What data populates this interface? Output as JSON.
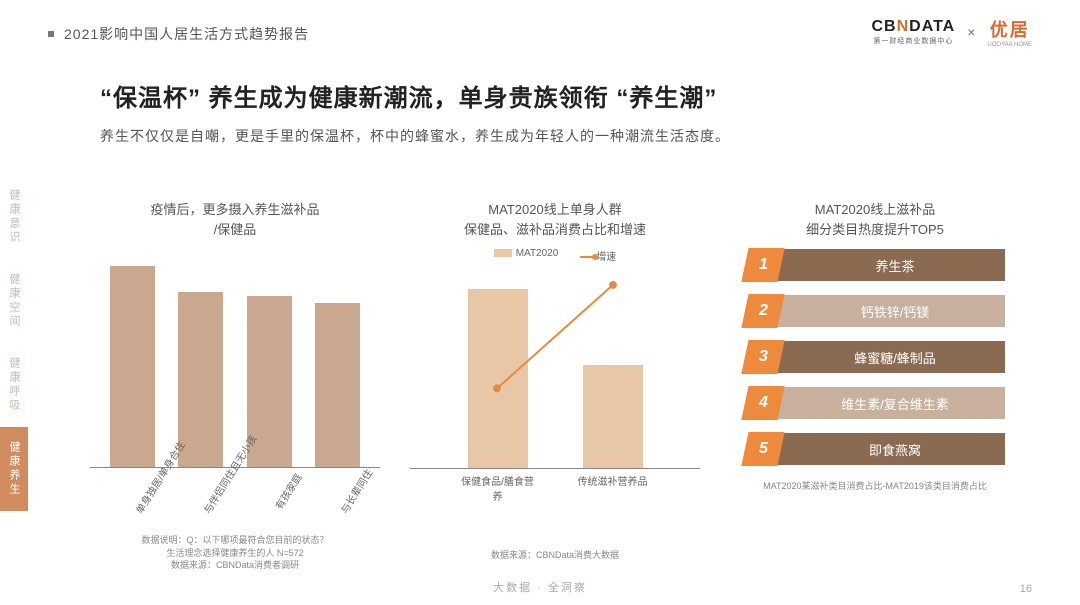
{
  "header": {
    "title": "2021影响中国人居生活方式趋势报告",
    "logo1_main_a": "CB",
    "logo1_main_acc": "N",
    "logo1_main_b": "DATA",
    "logo1_sub": "第一财经商业数据中心",
    "logo_x": "×",
    "logo2_main": "优居",
    "logo2_sub": "UOOYAA HOME"
  },
  "sidebar": {
    "items": [
      "健康意识",
      "健康空间",
      "健康呼吸",
      "健康养生"
    ],
    "active_index": 3
  },
  "main": {
    "title": "“保温杯” 养生成为健康新潮流，单身贵族领衔 “养生潮”",
    "subtitle": "养生不仅仅是自嘲，更是手里的保温杯，杯中的蜂蜜水，养生成为年轻人的一种潮流生活态度。"
  },
  "panel1": {
    "title_l1": "疫情后，更多摄入养生滋补品",
    "title_l2": "/保健品",
    "type": "bar",
    "categories": [
      "单身独居/单身合住",
      "与伴侣同住且无小孩",
      "有孩家庭",
      "与长辈同住"
    ],
    "values_pct": [
      92,
      80,
      78,
      75
    ],
    "bar_color": "#c9a88f",
    "axis_color": "#888888",
    "footnote_l1": "数据说明：Q：以下哪项最符合您目前的状态？",
    "footnote_l2": "生活理念选择健康养生的人 N=572",
    "footnote_l3": "数据来源：CBNData消费者调研"
  },
  "panel2": {
    "title_l1": "MAT2020线上单身人群",
    "title_l2": "保健品、滋补品消费占比和增速",
    "type": "bar+line",
    "legend_bar": "MAT2020",
    "legend_line": "增速",
    "categories": [
      "保健食品/膳食营养",
      "传统滋补营养品"
    ],
    "bar_values_pct": [
      90,
      52
    ],
    "line_values_pct": [
      40,
      92
    ],
    "bar_color": "#e8c7a6",
    "line_color": "#e88a3c",
    "axis_color": "#888888",
    "footnote": "数据来源：CBNData消费大数据"
  },
  "panel3": {
    "title_l1": "MAT2020线上滋补品",
    "title_l2": "细分类目热度提升TOP5",
    "type": "ranked-list",
    "rank_bg": "#ee8a3c",
    "brown": "#8b6a52",
    "light": "#c7b19e",
    "items": [
      {
        "rank": "1",
        "label": "养生茶",
        "style": "brown"
      },
      {
        "rank": "2",
        "label": "钙铁锌/钙镁",
        "style": "light"
      },
      {
        "rank": "3",
        "label": "蜂蜜糖/蜂制品",
        "style": "brown"
      },
      {
        "rank": "4",
        "label": "维生素/复合维生素",
        "style": "light"
      },
      {
        "rank": "5",
        "label": "即食燕窝",
        "style": "brown"
      }
    ],
    "footnote": "MAT2020某滋补类目消费占比-MAT2019该类目消费占比"
  },
  "footer": {
    "center": "大数据 · 全洞察",
    "page": "16"
  }
}
